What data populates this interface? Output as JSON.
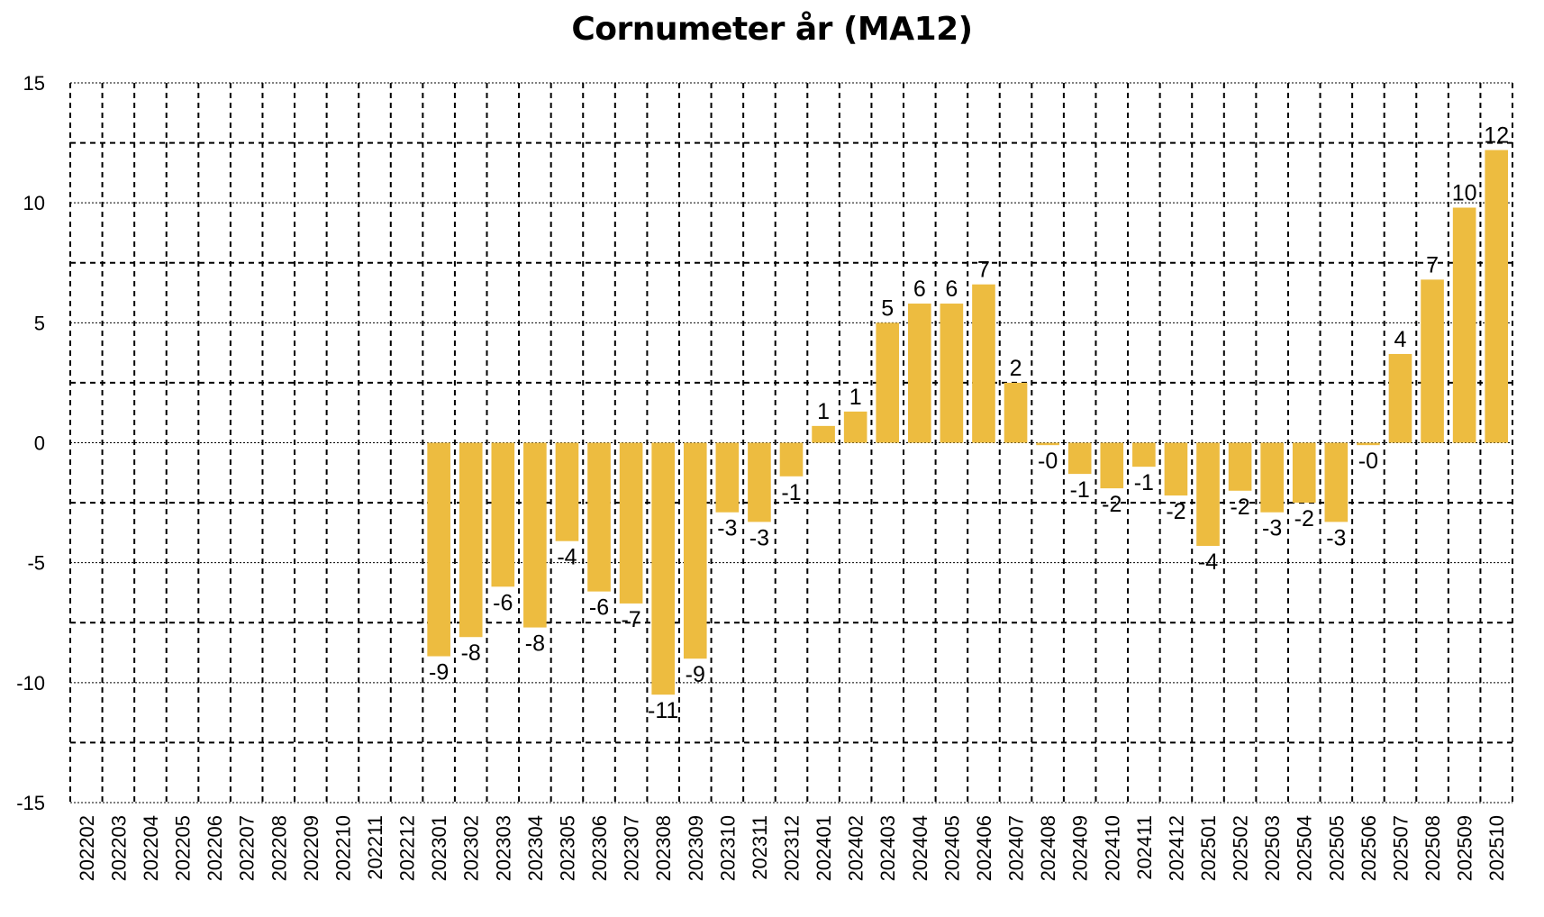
{
  "chart_data": {
    "type": "bar",
    "title": "Cornumeter år (MA12)",
    "xlabel": "",
    "ylabel": "",
    "ylim": [
      -15,
      15
    ],
    "yticks": [
      15,
      10,
      5,
      0,
      -5,
      -10,
      -15
    ],
    "minor_gridlines": [
      12.5,
      7.5,
      2.5,
      -2.5,
      -7.5,
      -12.5
    ],
    "grid": true,
    "legend": null,
    "bar_color": "#EDBC40",
    "categories": [
      "202202",
      "202203",
      "202204",
      "202205",
      "202206",
      "202207",
      "202208",
      "202209",
      "202210",
      "202211",
      "202212",
      "202301",
      "202302",
      "202303",
      "202304",
      "202305",
      "202306",
      "202307",
      "202308",
      "202309",
      "202310",
      "202311",
      "202312",
      "202401",
      "202402",
      "202403",
      "202404",
      "202405",
      "202406",
      "202407",
      "202408",
      "202409",
      "202410",
      "202411",
      "202412",
      "202501",
      "202502",
      "202503",
      "202504",
      "202505",
      "202506",
      "202507",
      "202508",
      "202509",
      "202510"
    ],
    "values": [
      null,
      null,
      null,
      null,
      null,
      null,
      null,
      null,
      null,
      null,
      null,
      -8.9,
      -8.1,
      -6.0,
      -7.7,
      -4.1,
      -6.2,
      -6.7,
      -10.5,
      -9.0,
      -2.9,
      -3.3,
      -1.4,
      0.7,
      1.3,
      5.0,
      5.8,
      5.8,
      6.6,
      2.5,
      -0.1,
      -1.3,
      -1.9,
      -1.0,
      -2.2,
      -4.3,
      -2.0,
      -2.9,
      -2.5,
      -3.3,
      -0.1,
      3.7,
      6.8,
      9.8,
      12.2
    ],
    "data_labels": [
      "",
      "",
      "",
      "",
      "",
      "",
      "",
      "",
      "",
      "",
      "",
      "-9",
      "-8",
      "-6",
      "-8",
      "-4",
      "-6",
      "-7",
      "-11",
      "-9",
      "-3",
      "-3",
      "-1",
      "1",
      "1",
      "5",
      "6",
      "6",
      "7",
      "2",
      "-0",
      "-1",
      "-2",
      "-1",
      "-2",
      "-4",
      "-2",
      "-3",
      "-2",
      "-3",
      "-0",
      "4",
      "7",
      "10",
      "12"
    ]
  }
}
